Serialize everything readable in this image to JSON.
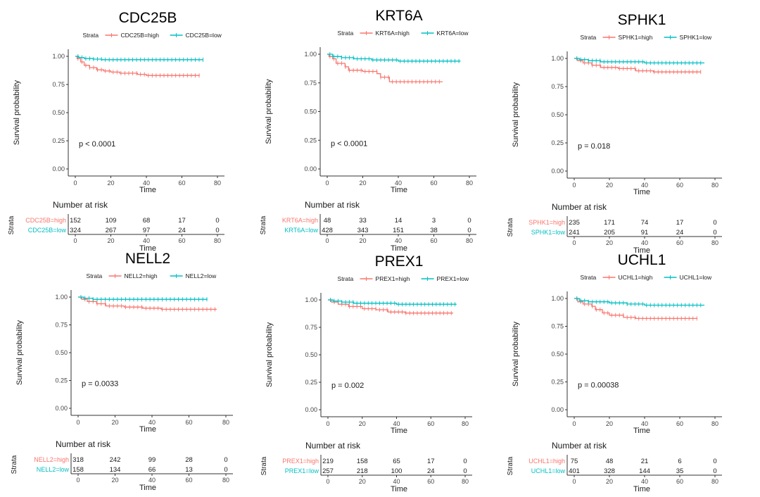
{
  "colors": {
    "high": "#F8766D",
    "low": "#00BFC4",
    "axis": "#333333",
    "text": "#1a1a1a"
  },
  "common": {
    "ylabel": "Survival probability",
    "xlabel": "Time",
    "legend_title": "Strata",
    "risk_title": "Number at risk",
    "risk_ylabel": "Strata",
    "xticks": [
      "0",
      "20",
      "40",
      "60",
      "80"
    ],
    "yticks": [
      "0.00",
      "0.25",
      "0.50",
      "0.75",
      "1.00"
    ]
  },
  "chart_data": [
    {
      "type": "line",
      "title": "CDC25B",
      "pvalue": "p < 0.0001",
      "xlim": [
        0,
        80
      ],
      "ylim": [
        0,
        1
      ],
      "series": [
        {
          "name": "CDC25B=high",
          "key": "high",
          "points": [
            [
              0,
              1.0
            ],
            [
              1,
              0.98
            ],
            [
              3,
              0.95
            ],
            [
              5,
              0.92
            ],
            [
              8,
              0.9
            ],
            [
              12,
              0.88
            ],
            [
              16,
              0.87
            ],
            [
              20,
              0.86
            ],
            [
              25,
              0.85
            ],
            [
              30,
              0.85
            ],
            [
              35,
              0.84
            ],
            [
              40,
              0.83
            ],
            [
              45,
              0.83
            ],
            [
              55,
              0.83
            ],
            [
              70,
              0.83
            ]
          ],
          "risk": [
            "152",
            "109",
            "68",
            "17",
            "0"
          ]
        },
        {
          "name": "CDC25B=low",
          "key": "low",
          "points": [
            [
              0,
              1.0
            ],
            [
              2,
              0.99
            ],
            [
              5,
              0.98
            ],
            [
              10,
              0.975
            ],
            [
              15,
              0.97
            ],
            [
              25,
              0.97
            ],
            [
              40,
              0.97
            ],
            [
              55,
              0.97
            ],
            [
              72,
              0.97
            ]
          ],
          "risk": [
            "324",
            "267",
            "97",
            "24",
            "0"
          ]
        }
      ]
    },
    {
      "type": "line",
      "title": "KRT6A",
      "pvalue": "p < 0.0001",
      "xlim": [
        0,
        80
      ],
      "ylim": [
        0,
        1
      ],
      "series": [
        {
          "name": "KRT6A=high",
          "key": "high",
          "points": [
            [
              0,
              1.0
            ],
            [
              1,
              0.98
            ],
            [
              3,
              0.96
            ],
            [
              5,
              0.92
            ],
            [
              10,
              0.89
            ],
            [
              12,
              0.86
            ],
            [
              20,
              0.85
            ],
            [
              28,
              0.83
            ],
            [
              30,
              0.8
            ],
            [
              35,
              0.76
            ],
            [
              45,
              0.76
            ],
            [
              65,
              0.76
            ]
          ],
          "risk": [
            "48",
            "33",
            "14",
            "3",
            "0"
          ]
        },
        {
          "name": "KRT6A=low",
          "key": "low",
          "points": [
            [
              0,
              1.0
            ],
            [
              3,
              0.98
            ],
            [
              8,
              0.97
            ],
            [
              15,
              0.96
            ],
            [
              25,
              0.95
            ],
            [
              40,
              0.94
            ],
            [
              55,
              0.94
            ],
            [
              75,
              0.94
            ]
          ],
          "risk": [
            "428",
            "343",
            "151",
            "38",
            "0"
          ]
        }
      ]
    },
    {
      "type": "line",
      "title": "SPHK1",
      "pvalue": "p = 0.018",
      "xlim": [
        0,
        80
      ],
      "ylim": [
        0,
        1
      ],
      "series": [
        {
          "name": "SPHK1=high",
          "key": "high",
          "points": [
            [
              0,
              1.0
            ],
            [
              2,
              0.98
            ],
            [
              5,
              0.96
            ],
            [
              10,
              0.94
            ],
            [
              15,
              0.92
            ],
            [
              25,
              0.91
            ],
            [
              35,
              0.89
            ],
            [
              45,
              0.88
            ],
            [
              60,
              0.88
            ],
            [
              72,
              0.88
            ]
          ],
          "risk": [
            "235",
            "171",
            "74",
            "17",
            "0"
          ]
        },
        {
          "name": "SPHK1=low",
          "key": "low",
          "points": [
            [
              0,
              1.0
            ],
            [
              3,
              0.99
            ],
            [
              8,
              0.98
            ],
            [
              15,
              0.97
            ],
            [
              25,
              0.97
            ],
            [
              40,
              0.96
            ],
            [
              55,
              0.96
            ],
            [
              74,
              0.96
            ]
          ],
          "risk": [
            "241",
            "205",
            "91",
            "24",
            "0"
          ]
        }
      ]
    },
    {
      "type": "line",
      "title": "NELL2",
      "pvalue": "p = 0.0033",
      "xlim": [
        0,
        80
      ],
      "ylim": [
        0,
        1
      ],
      "series": [
        {
          "name": "NELL2=high",
          "key": "high",
          "points": [
            [
              0,
              1.0
            ],
            [
              2,
              0.98
            ],
            [
              5,
              0.96
            ],
            [
              10,
              0.94
            ],
            [
              15,
              0.92
            ],
            [
              25,
              0.91
            ],
            [
              35,
              0.9
            ],
            [
              45,
              0.89
            ],
            [
              60,
              0.89
            ],
            [
              75,
              0.89
            ]
          ],
          "risk": [
            "318",
            "242",
            "99",
            "28",
            "0"
          ]
        },
        {
          "name": "NELL2=low",
          "key": "low",
          "points": [
            [
              0,
              1.0
            ],
            [
              3,
              0.99
            ],
            [
              8,
              0.98
            ],
            [
              20,
              0.98
            ],
            [
              40,
              0.98
            ],
            [
              55,
              0.98
            ],
            [
              70,
              0.98
            ]
          ],
          "risk": [
            "158",
            "134",
            "66",
            "13",
            "0"
          ]
        }
      ]
    },
    {
      "type": "line",
      "title": "PREX1",
      "pvalue": "p = 0.002",
      "xlim": [
        0,
        80
      ],
      "ylim": [
        0,
        1
      ],
      "series": [
        {
          "name": "PREX1=high",
          "key": "high",
          "points": [
            [
              0,
              1.0
            ],
            [
              2,
              0.98
            ],
            [
              6,
              0.96
            ],
            [
              12,
              0.94
            ],
            [
              20,
              0.92
            ],
            [
              28,
              0.91
            ],
            [
              35,
              0.89
            ],
            [
              45,
              0.88
            ],
            [
              60,
              0.88
            ],
            [
              73,
              0.88
            ]
          ],
          "risk": [
            "219",
            "158",
            "65",
            "17",
            "0"
          ]
        },
        {
          "name": "PREX1=low",
          "key": "low",
          "points": [
            [
              0,
              1.0
            ],
            [
              3,
              0.99
            ],
            [
              8,
              0.98
            ],
            [
              15,
              0.97
            ],
            [
              25,
              0.97
            ],
            [
              40,
              0.96
            ],
            [
              60,
              0.96
            ],
            [
              75,
              0.96
            ]
          ],
          "risk": [
            "257",
            "218",
            "100",
            "24",
            "0"
          ]
        }
      ]
    },
    {
      "type": "line",
      "title": "UCHL1",
      "pvalue": "p = 0.00038",
      "xlim": [
        0,
        80
      ],
      "ylim": [
        0,
        1
      ],
      "series": [
        {
          "name": "UCHL1=high",
          "key": "high",
          "points": [
            [
              0,
              1.0
            ],
            [
              2,
              0.97
            ],
            [
              5,
              0.95
            ],
            [
              10,
              0.93
            ],
            [
              12,
              0.9
            ],
            [
              16,
              0.87
            ],
            [
              20,
              0.85
            ],
            [
              28,
              0.83
            ],
            [
              35,
              0.82
            ],
            [
              50,
              0.82
            ],
            [
              70,
              0.82
            ]
          ],
          "risk": [
            "75",
            "48",
            "21",
            "6",
            "0"
          ]
        },
        {
          "name": "UCHL1=low",
          "key": "low",
          "points": [
            [
              0,
              1.0
            ],
            [
              3,
              0.98
            ],
            [
              8,
              0.97
            ],
            [
              20,
              0.96
            ],
            [
              30,
              0.95
            ],
            [
              40,
              0.94
            ],
            [
              55,
              0.94
            ],
            [
              74,
              0.94
            ]
          ],
          "risk": [
            "401",
            "328",
            "144",
            "35",
            "0"
          ]
        }
      ]
    }
  ]
}
